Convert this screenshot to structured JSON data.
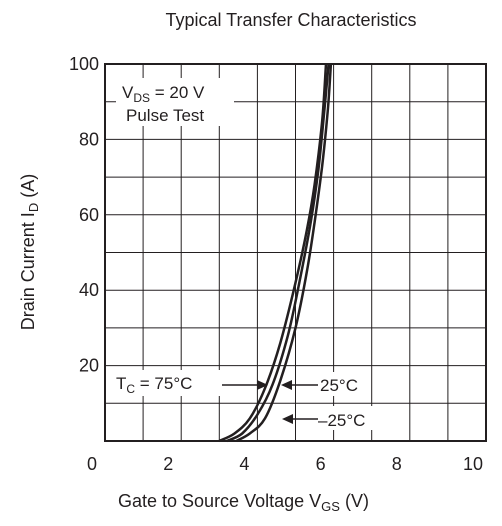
{
  "chart_data": {
    "type": "line",
    "title": "Typical Transfer Characteristics",
    "xlabel": {
      "main": "Gate to Source Voltage",
      "symbol": "V",
      "sub": "GS",
      "unit": "(V)"
    },
    "ylabel": {
      "main": "Drain Current",
      "symbol": "I",
      "sub": "D",
      "unit": "(A)"
    },
    "xlim": [
      0,
      10
    ],
    "ylim": [
      0,
      100
    ],
    "x_ticks": [
      0,
      2,
      4,
      6,
      8,
      10
    ],
    "y_ticks": [
      20,
      40,
      60,
      80,
      100
    ],
    "grid": true,
    "annotations": {
      "conditions": {
        "line1_symbol": "V",
        "line1_sub": "DS",
        "line1_rest": " = 20 V",
        "line2": "Pulse Test"
      },
      "tc_label": {
        "symbol": "T",
        "sub": "C",
        "rest": " = 75°C"
      },
      "label_25": "25°C",
      "label_m25": "–25°C"
    },
    "series": [
      {
        "label": "75°C",
        "x": [
          3.0,
          3.4,
          3.8,
          4.2,
          4.6,
          5.0,
          5.3,
          5.5,
          5.7,
          5.8
        ],
        "y": [
          0,
          2,
          6,
          14,
          26,
          42,
          56,
          68,
          85,
          100
        ]
      },
      {
        "label": "25°C",
        "x": [
          3.2,
          3.6,
          4.0,
          4.4,
          4.8,
          5.1,
          5.4,
          5.6,
          5.75,
          5.87
        ],
        "y": [
          0,
          2,
          7,
          15,
          28,
          42,
          58,
          72,
          87,
          100
        ]
      },
      {
        "label": "–25°C",
        "x": [
          3.45,
          3.8,
          4.2,
          4.6,
          5.0,
          5.3,
          5.5,
          5.7,
          5.85,
          5.93
        ],
        "y": [
          0,
          2,
          6,
          16,
          30,
          45,
          58,
          73,
          88,
          100
        ]
      }
    ]
  }
}
